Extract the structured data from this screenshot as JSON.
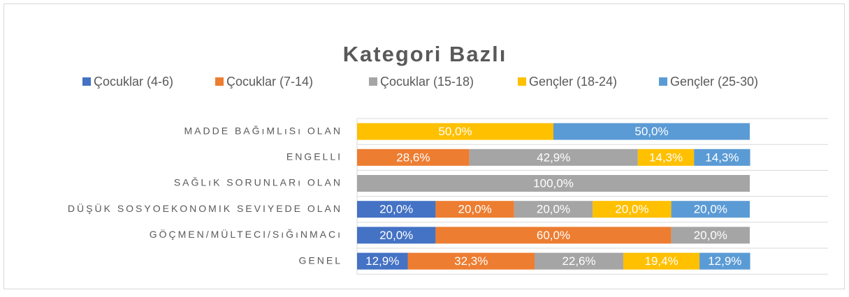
{
  "chart_data": {
    "type": "stacked-bar-horizontal",
    "title": "Kategori Bazlı",
    "categories": [
      "MADDE BAĞıMLıSı OLAN",
      "ENGELLI",
      "SAĞLıK SORUNLARı OLAN",
      "DÜŞÜK SOSYOEKONOMIK SEVIYEDE OLAN",
      "GÖÇMEN/MÜLTECI/SıĞıNMACı",
      "GENEL"
    ],
    "series": [
      {
        "name": "Çocuklar (4-6)",
        "color": "#4472c4",
        "values": [
          0,
          0,
          0,
          20,
          20,
          12.9
        ],
        "value_labels": [
          null,
          null,
          null,
          "20,0%",
          "20,0%",
          "12,9%"
        ]
      },
      {
        "name": "Çocuklar (7-14)",
        "color": "#ed7d31",
        "values": [
          0,
          28.6,
          0,
          20,
          60,
          32.3
        ],
        "value_labels": [
          null,
          "28,6%",
          null,
          "20,0%",
          "60,0%",
          "32,3%"
        ]
      },
      {
        "name": "Çocuklar (15-18)",
        "color": "#a5a5a5",
        "values": [
          0,
          42.9,
          100,
          20,
          20,
          22.6
        ],
        "value_labels": [
          null,
          "42,9%",
          "100,0%",
          "20,0%",
          "20,0%",
          "22,6%"
        ]
      },
      {
        "name": "Gençler (18-24)",
        "color": "#ffc000",
        "values": [
          50,
          14.3,
          0,
          20,
          0,
          19.4
        ],
        "value_labels": [
          "50,0%",
          "14,3%",
          null,
          "20,0%",
          null,
          "19,4%"
        ]
      },
      {
        "name": "Gençler (25-30)",
        "color": "#5b9bd5",
        "values": [
          50,
          14.3,
          0,
          20,
          0,
          12.9
        ],
        "value_labels": [
          "50,0%",
          "14,3%",
          null,
          "20,0%",
          null,
          "12,9%"
        ]
      }
    ],
    "xlim": [
      0,
      100
    ],
    "legend": "top"
  }
}
